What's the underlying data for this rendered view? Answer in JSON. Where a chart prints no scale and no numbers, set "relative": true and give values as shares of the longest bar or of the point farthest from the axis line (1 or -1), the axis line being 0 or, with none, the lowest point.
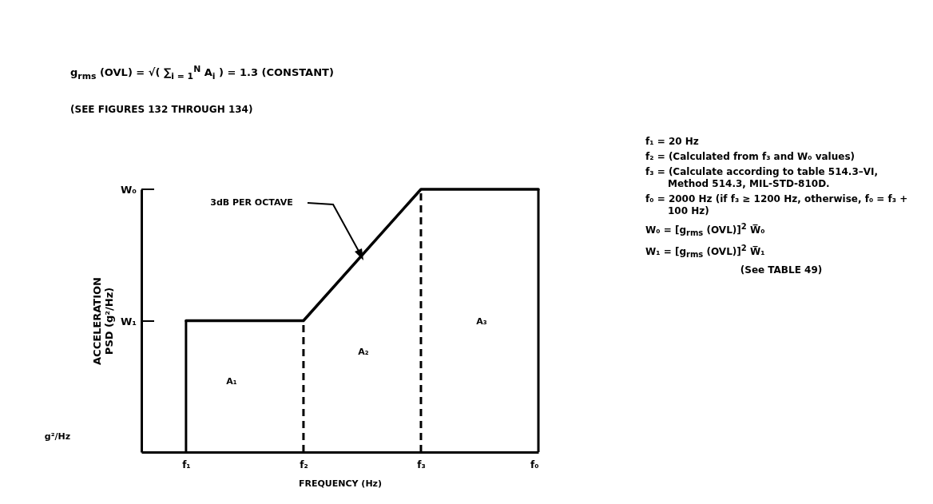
{
  "chart_data": {
    "type": "line",
    "relative": true,
    "title": "g$_{rms}$ (OVL) = √( ∑$_{i = 1}$$^{N}$ A$_{i}$ ) = 1.3 (CONSTANT)",
    "subtitle": "(SEE FIGURES 132 THROUGH 134)",
    "xlabel": "FREQUENCY (Hz)",
    "ylabel": "ACCELERATION\nPSD (g²/Hz)",
    "categories": [
      "f₁",
      "f₂",
      "f₃",
      "f₀"
    ],
    "series": [
      {
        "color": "#000000",
        "values": [
          0.5,
          0.5,
          1,
          1
        ]
      }
    ],
    "line_style": "solid",
    "ref_lines": [
      {
        "axis": "x",
        "value": "f₁",
        "line_style": "solid",
        "color": "#000000"
      },
      {
        "axis": "x",
        "value": "f₂",
        "line_style": "dashed",
        "color": "#000000"
      },
      {
        "axis": "x",
        "value": "f₃",
        "line_style": "dashed",
        "color": "#000000"
      },
      {
        "axis": "x",
        "value": "f₀",
        "line_style": "solid",
        "color": "#000000"
      }
    ],
    "annotations": [
      "3dB PER OCTAVE",
      "A₁",
      "A₂",
      "A₃",
      "f₁ = 20 Hz",
      "f₂ = (Calculated from f₃ and W₀ values)",
      "f₃ = (Calculate according to table 514.3–VI, Method 514.3, MIL-STD-810D.",
      "f₀ = 2000 Hz (if f₃ ≥ 1200 Hz, otherwise, f₀ = f₃ + 100 Hz)",
      "W₀ = [g$_{rms}$ (OVL)]$^{2}$ W̅₀",
      "W₁ = [g$_{rms}$ (OVL)]$^{2}$ W̅₁",
      "(See TABLE 49)",
      "W₀",
      "W₁",
      "g²/Hz"
    ]
  }
}
